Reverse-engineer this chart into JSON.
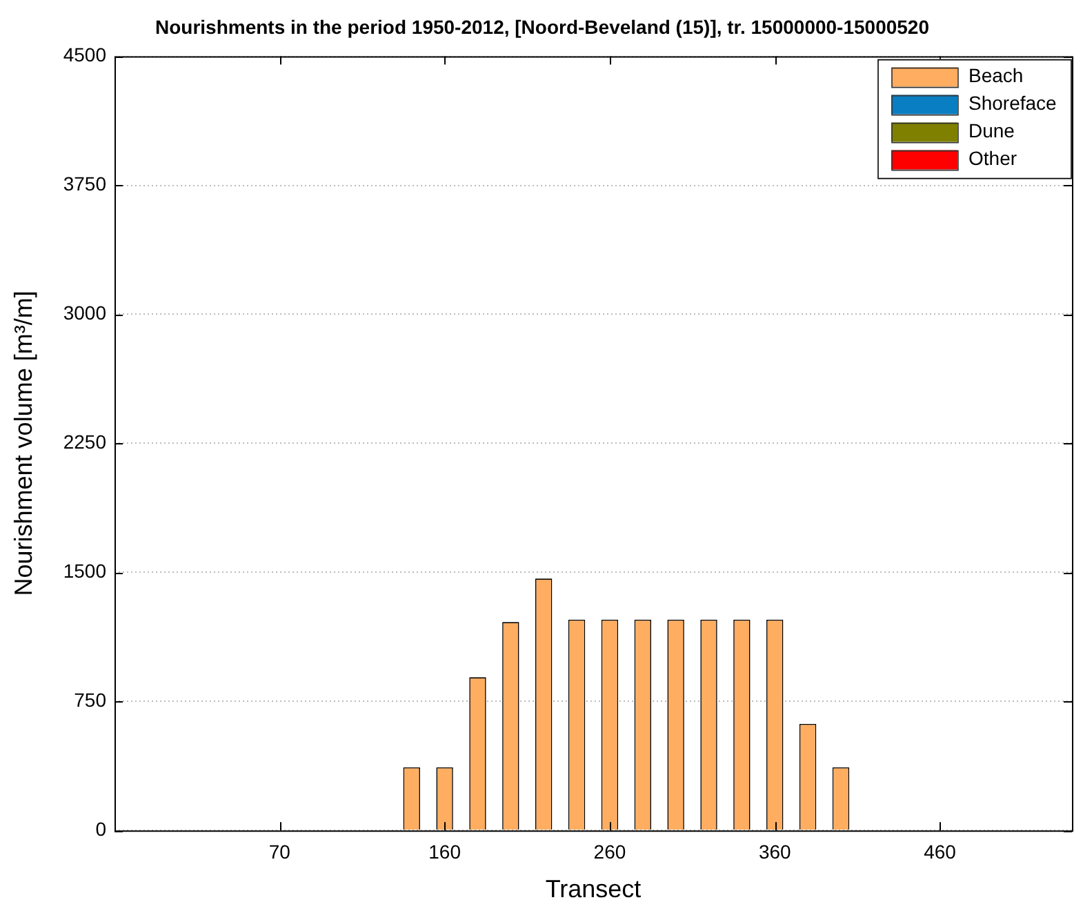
{
  "chart_data": {
    "type": "bar",
    "title": "Nourishments in the period 1950-2012, [Noord-Beveland (15)], tr. 15000000-15000520",
    "xlabel": "Transect",
    "ylabel": "Nourishment volume [m³/m]",
    "categories": [
      null,
      null,
      null,
      null,
      null,
      "70",
      null,
      null,
      null,
      null,
      "160",
      null,
      null,
      null,
      null,
      "260",
      null,
      null,
      null,
      null,
      "360",
      null,
      null,
      null,
      null,
      "460",
      null,
      null,
      null,
      null
    ],
    "series": [
      {
        "name": "Beach",
        "color": "#ffad60",
        "values": [
          null,
          null,
          null,
          null,
          null,
          null,
          null,
          null,
          null,
          366,
          366,
          890,
          1211,
          1464,
          1225,
          1225,
          1225,
          1225,
          1225,
          1225,
          1225,
          619,
          366,
          null,
          null,
          null,
          null,
          null,
          null,
          null
        ]
      },
      {
        "name": "Shoreface",
        "color": "#0a7ec2",
        "values": [
          null,
          null,
          null,
          null,
          null,
          null,
          null,
          null,
          null,
          null,
          null,
          null,
          null,
          null,
          null,
          null,
          null,
          null,
          null,
          null,
          null,
          null,
          null,
          null,
          null,
          null,
          null,
          null,
          null,
          null
        ]
      },
      {
        "name": "Dune",
        "color": "#808000",
        "values": [
          null,
          null,
          null,
          null,
          null,
          null,
          null,
          null,
          null,
          null,
          null,
          null,
          null,
          null,
          null,
          null,
          null,
          null,
          null,
          null,
          null,
          null,
          null,
          null,
          null,
          null,
          null,
          null,
          null,
          null
        ]
      },
      {
        "name": "Other",
        "color": "#ff0000",
        "values": [
          null,
          null,
          null,
          null,
          null,
          null,
          null,
          null,
          null,
          null,
          null,
          null,
          null,
          null,
          null,
          null,
          null,
          null,
          null,
          null,
          null,
          null,
          null,
          null,
          null,
          null,
          null,
          null,
          null,
          null
        ]
      }
    ],
    "stacked": true,
    "ylim": [
      0,
      4500
    ],
    "yticks": [
      0,
      750,
      1500,
      2250,
      3000,
      3750,
      4500
    ],
    "grid": "y",
    "legend": "top right"
  }
}
